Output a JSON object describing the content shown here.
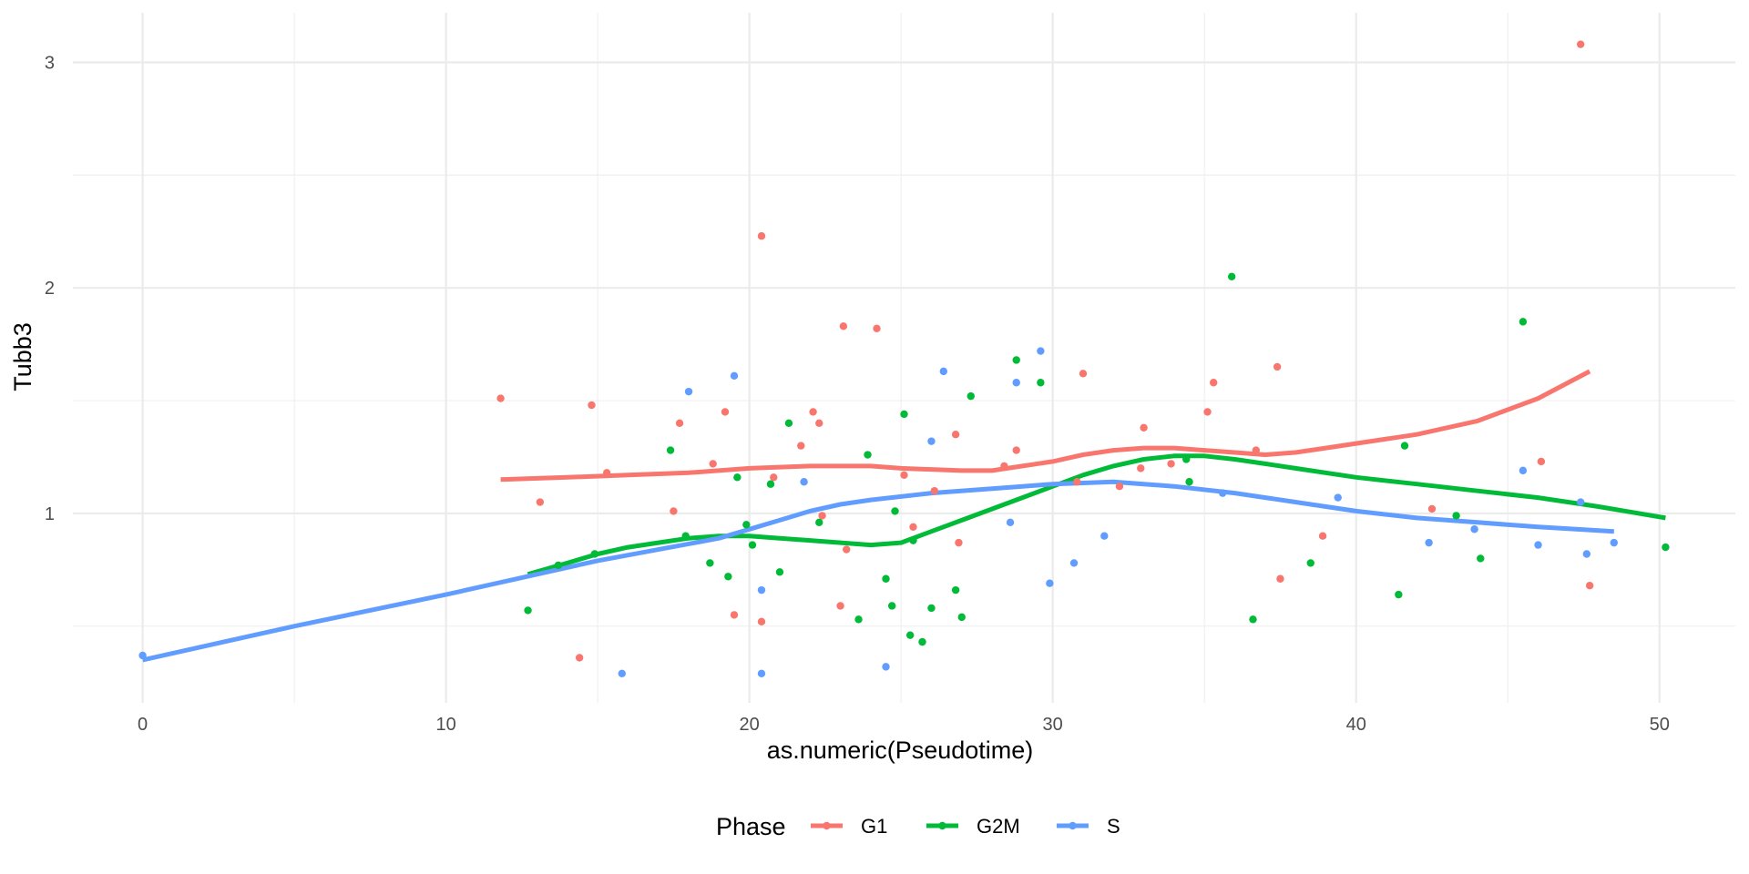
{
  "chart_data": {
    "type": "scatter",
    "xlabel": "as.numeric(Pseudotime)",
    "ylabel": "Tubb3",
    "xlim": [
      -2.3,
      52.5
    ],
    "ylim": [
      0.16,
      3.22
    ],
    "x_ticks": [
      0,
      10,
      20,
      30,
      40,
      50
    ],
    "y_ticks": [
      1,
      2,
      3
    ],
    "x_tick_labels": [
      "0",
      "10",
      "20",
      "30",
      "40",
      "50"
    ],
    "y_tick_labels": [
      "1",
      "2",
      "3"
    ],
    "grid": true,
    "legend": {
      "title": "Phase",
      "position": "bottom"
    },
    "series": [
      {
        "name": "G1",
        "color": "#F8766D",
        "points": [
          [
            11.8,
            1.51
          ],
          [
            13.1,
            1.05
          ],
          [
            14.4,
            0.36
          ],
          [
            14.8,
            1.48
          ],
          [
            15.3,
            1.18
          ],
          [
            17.5,
            1.01
          ],
          [
            17.7,
            1.4
          ],
          [
            18.8,
            1.22
          ],
          [
            19.2,
            1.45
          ],
          [
            19.5,
            0.55
          ],
          [
            20.4,
            2.23
          ],
          [
            20.4,
            0.52
          ],
          [
            20.8,
            1.16
          ],
          [
            21.7,
            1.3
          ],
          [
            22.1,
            1.45
          ],
          [
            22.3,
            1.4
          ],
          [
            22.4,
            0.99
          ],
          [
            23.0,
            0.59
          ],
          [
            23.2,
            0.84
          ],
          [
            23.1,
            1.83
          ],
          [
            24.2,
            1.82
          ],
          [
            25.1,
            1.17
          ],
          [
            25.4,
            0.94
          ],
          [
            26.1,
            1.1
          ],
          [
            26.8,
            1.35
          ],
          [
            26.9,
            0.87
          ],
          [
            28.4,
            1.21
          ],
          [
            28.8,
            1.28
          ],
          [
            31.0,
            1.62
          ],
          [
            30.8,
            1.14
          ],
          [
            32.2,
            1.12
          ],
          [
            32.9,
            1.2
          ],
          [
            33.0,
            1.38
          ],
          [
            33.9,
            1.22
          ],
          [
            35.1,
            1.45
          ],
          [
            35.3,
            1.58
          ],
          [
            36.7,
            1.28
          ],
          [
            37.5,
            0.71
          ],
          [
            37.4,
            1.65
          ],
          [
            38.9,
            0.9
          ],
          [
            42.5,
            1.02
          ],
          [
            46.1,
            1.23
          ],
          [
            47.4,
            3.08
          ],
          [
            47.7,
            0.68
          ]
        ],
        "smooth": [
          [
            11.8,
            1.15
          ],
          [
            14,
            1.16
          ],
          [
            16,
            1.17
          ],
          [
            18,
            1.18
          ],
          [
            20,
            1.2
          ],
          [
            22,
            1.21
          ],
          [
            24,
            1.21
          ],
          [
            25,
            1.2
          ],
          [
            27,
            1.19
          ],
          [
            28,
            1.19
          ],
          [
            29,
            1.21
          ],
          [
            30,
            1.23
          ],
          [
            31,
            1.26
          ],
          [
            32,
            1.28
          ],
          [
            33,
            1.29
          ],
          [
            34,
            1.29
          ],
          [
            35,
            1.28
          ],
          [
            36,
            1.27
          ],
          [
            37,
            1.26
          ],
          [
            38,
            1.27
          ],
          [
            39,
            1.29
          ],
          [
            40,
            1.31
          ],
          [
            42,
            1.35
          ],
          [
            44,
            1.41
          ],
          [
            46,
            1.51
          ],
          [
            47.7,
            1.63
          ]
        ]
      },
      {
        "name": "G2M",
        "color": "#00BA38",
        "points": [
          [
            12.7,
            0.57
          ],
          [
            13.7,
            0.77
          ],
          [
            14.9,
            0.82
          ],
          [
            17.4,
            1.28
          ],
          [
            17.9,
            0.9
          ],
          [
            18.7,
            0.78
          ],
          [
            19.3,
            0.72
          ],
          [
            19.6,
            1.16
          ],
          [
            19.9,
            0.95
          ],
          [
            20.1,
            0.86
          ],
          [
            20.7,
            1.13
          ],
          [
            21.0,
            0.74
          ],
          [
            21.3,
            1.4
          ],
          [
            22.3,
            0.96
          ],
          [
            23.6,
            0.53
          ],
          [
            23.9,
            1.26
          ],
          [
            24.5,
            0.71
          ],
          [
            24.7,
            0.59
          ],
          [
            24.8,
            1.01
          ],
          [
            25.1,
            1.44
          ],
          [
            25.3,
            0.46
          ],
          [
            25.4,
            0.88
          ],
          [
            25.7,
            0.43
          ],
          [
            26.0,
            0.58
          ],
          [
            26.8,
            0.66
          ],
          [
            27.0,
            0.54
          ],
          [
            27.3,
            1.52
          ],
          [
            28.8,
            1.68
          ],
          [
            29.6,
            1.58
          ],
          [
            34.4,
            1.24
          ],
          [
            34.5,
            1.14
          ],
          [
            35.9,
            2.05
          ],
          [
            36.6,
            0.53
          ],
          [
            38.5,
            0.78
          ],
          [
            41.4,
            0.64
          ],
          [
            41.6,
            1.3
          ],
          [
            43.3,
            0.99
          ],
          [
            44.1,
            0.8
          ],
          [
            45.5,
            1.85
          ],
          [
            50.2,
            0.85
          ]
        ],
        "smooth": [
          [
            12.7,
            0.73
          ],
          [
            14,
            0.78
          ],
          [
            15,
            0.82
          ],
          [
            16,
            0.85
          ],
          [
            17,
            0.87
          ],
          [
            18,
            0.89
          ],
          [
            19,
            0.9
          ],
          [
            20,
            0.9
          ],
          [
            21,
            0.89
          ],
          [
            22,
            0.88
          ],
          [
            23,
            0.87
          ],
          [
            24,
            0.86
          ],
          [
            25,
            0.87
          ],
          [
            26,
            0.92
          ],
          [
            27,
            0.97
          ],
          [
            28,
            1.02
          ],
          [
            29,
            1.07
          ],
          [
            30,
            1.12
          ],
          [
            31,
            1.17
          ],
          [
            32,
            1.21
          ],
          [
            33,
            1.24
          ],
          [
            34,
            1.255
          ],
          [
            35,
            1.255
          ],
          [
            36,
            1.24
          ],
          [
            37,
            1.22
          ],
          [
            38,
            1.2
          ],
          [
            40,
            1.16
          ],
          [
            42,
            1.13
          ],
          [
            44,
            1.1
          ],
          [
            46,
            1.07
          ],
          [
            48,
            1.03
          ],
          [
            50.2,
            0.98
          ]
        ]
      },
      {
        "name": "S",
        "color": "#619CFF",
        "points": [
          [
            0.0,
            0.37
          ],
          [
            15.8,
            0.29
          ],
          [
            18.0,
            1.54
          ],
          [
            19.5,
            1.61
          ],
          [
            20.4,
            0.66
          ],
          [
            20.4,
            0.29
          ],
          [
            21.8,
            1.14
          ],
          [
            24.5,
            0.32
          ],
          [
            26.0,
            1.32
          ],
          [
            26.4,
            1.63
          ],
          [
            28.6,
            0.96
          ],
          [
            28.8,
            1.58
          ],
          [
            29.6,
            1.72
          ],
          [
            29.9,
            0.69
          ],
          [
            30.7,
            0.78
          ],
          [
            31.7,
            0.9
          ],
          [
            35.6,
            1.09
          ],
          [
            39.4,
            1.07
          ],
          [
            42.4,
            0.87
          ],
          [
            43.9,
            0.93
          ],
          [
            45.5,
            1.19
          ],
          [
            46.0,
            0.86
          ],
          [
            47.4,
            1.05
          ],
          [
            47.6,
            0.82
          ],
          [
            48.5,
            0.87
          ]
        ],
        "smooth": [
          [
            0,
            0.35
          ],
          [
            5,
            0.5
          ],
          [
            10,
            0.64
          ],
          [
            13,
            0.73
          ],
          [
            15,
            0.79
          ],
          [
            17,
            0.84
          ],
          [
            19,
            0.89
          ],
          [
            20,
            0.93
          ],
          [
            21,
            0.97
          ],
          [
            22,
            1.01
          ],
          [
            23,
            1.04
          ],
          [
            24,
            1.06
          ],
          [
            26,
            1.09
          ],
          [
            28,
            1.11
          ],
          [
            30,
            1.13
          ],
          [
            32,
            1.14
          ],
          [
            33,
            1.13
          ],
          [
            34,
            1.12
          ],
          [
            36,
            1.09
          ],
          [
            38,
            1.05
          ],
          [
            40,
            1.01
          ],
          [
            42,
            0.98
          ],
          [
            44,
            0.96
          ],
          [
            46,
            0.94
          ],
          [
            48.5,
            0.92
          ]
        ]
      }
    ]
  }
}
